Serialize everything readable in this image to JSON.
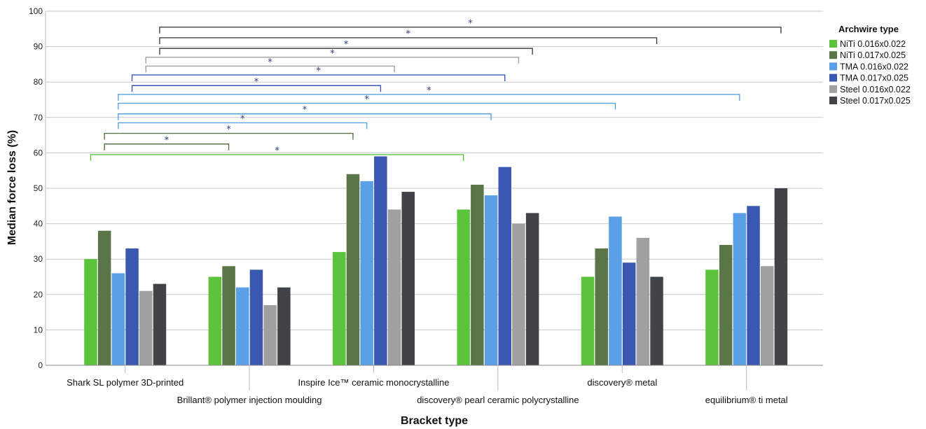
{
  "chart_data": {
    "type": "bar",
    "title": "",
    "xlabel": "Bracket type",
    "ylabel": "Median force loss (%)",
    "ylim": [
      0,
      100
    ],
    "yticks": [
      0,
      10,
      20,
      30,
      40,
      50,
      60,
      70,
      80,
      90,
      100
    ],
    "grid": true,
    "legend_title": "Archwire type",
    "legend_position": "right",
    "categories": [
      "Shark SL polymer 3D-printed",
      "Brillant® polymer injection moulding",
      "Inspire Ice™ ceramic monocrystalline",
      "discovery® pearl ceramic polycrystalline",
      "discovery® metal",
      "equilibrium® ti metal"
    ],
    "series": [
      {
        "name": "NiTi 0.016x0.022",
        "color": "#5cc43c",
        "values": [
          30,
          25,
          32,
          44,
          25,
          27
        ]
      },
      {
        "name": "NiTi 0.017x0.025",
        "color": "#5a7547",
        "values": [
          38,
          28,
          54,
          51,
          33,
          34
        ]
      },
      {
        "name": "TMA 0.016x0.022",
        "color": "#5aa0e6",
        "values": [
          26,
          22,
          52,
          48,
          42,
          43
        ]
      },
      {
        "name": "TMA 0.017x0.025",
        "color": "#3b58b0",
        "values": [
          33,
          27,
          59,
          56,
          29,
          45
        ]
      },
      {
        "name": "Steel 0.016x0.022",
        "color": "#a0a0a0",
        "values": [
          21,
          17,
          44,
          40,
          36,
          28
        ]
      },
      {
        "name": "Steel 0.017x0.025",
        "color": "#404448",
        "values": [
          23,
          22,
          49,
          43,
          25,
          50
        ]
      }
    ],
    "significance_brackets": [
      {
        "series": 0,
        "from": 0,
        "to": 3,
        "y": 59.5,
        "label": "*"
      },
      {
        "series": 1,
        "from": 0,
        "to": 1,
        "y": 62.5,
        "label": "*"
      },
      {
        "series": 1,
        "from": 0,
        "to": 2,
        "y": 65.5,
        "label": "*"
      },
      {
        "series": 2,
        "from": 0,
        "to": 2,
        "y": 68.5,
        "label": "*"
      },
      {
        "series": 2,
        "from": 0,
        "to": 3,
        "y": 71.0,
        "label": "*"
      },
      {
        "series": 2,
        "from": 0,
        "to": 4,
        "y": 74.0,
        "label": "*"
      },
      {
        "series": 2,
        "from": 0,
        "to": 5,
        "y": 76.5,
        "label": "*"
      },
      {
        "series": 3,
        "from": 0,
        "to": 2,
        "y": 79.0,
        "label": "*"
      },
      {
        "series": 3,
        "from": 0,
        "to": 3,
        "y": 82.0,
        "label": "*"
      },
      {
        "series": 4,
        "from": 0,
        "to": 2,
        "y": 84.5,
        "label": "*"
      },
      {
        "series": 4,
        "from": 0,
        "to": 3,
        "y": 87.0,
        "label": "*"
      },
      {
        "series": 5,
        "from": 0,
        "to": 3,
        "y": 89.5,
        "label": "*"
      },
      {
        "series": 5,
        "from": 0,
        "to": 4,
        "y": 92.5,
        "label": "*"
      },
      {
        "series": 5,
        "from": 0,
        "to": 5,
        "y": 95.5,
        "label": "*"
      }
    ]
  }
}
